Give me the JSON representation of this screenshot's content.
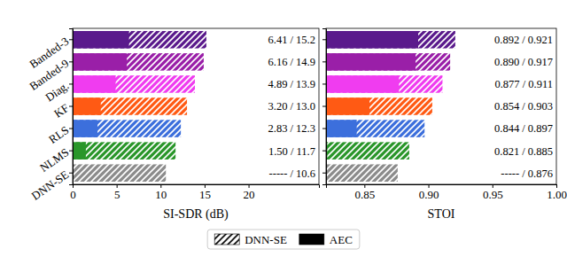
{
  "chart_data": [
    {
      "type": "bar",
      "orientation": "horizontal",
      "categories": [
        "Banded-3",
        "Banded-9",
        "Diag.",
        "KF",
        "RLS",
        "NLMS",
        "DNN-SE"
      ],
      "colors": [
        "#5a1a8c",
        "#9a1fa8",
        "#f03cf0",
        "#ff5a14",
        "#3c6fdc",
        "#2a962a",
        "#8c8c8c"
      ],
      "xlabel": "SI-SDR (dB)",
      "xlim": [
        0,
        28
      ],
      "xticks": [
        0,
        5,
        10,
        15,
        20
      ],
      "series": [
        {
          "name": "DNN-SE",
          "marker": "hatch",
          "color": "#000000",
          "values": [
            15.2,
            14.9,
            13.9,
            13.0,
            12.3,
            11.7,
            10.6
          ],
          "value_labels": [
            "6.41 / 15.2",
            "6.16 / 14.9",
            "4.89 / 13.9",
            "3.20 / 13.0",
            "2.83 / 12.3",
            "1.50 / 11.7",
            "----- / 10.6"
          ]
        },
        {
          "name": "AEC",
          "marker": "solid",
          "color": "#000000",
          "values": [
            6.41,
            6.16,
            4.89,
            3.2,
            2.83,
            1.5,
            null
          ]
        }
      ],
      "data_labels": true,
      "legend": "lower center",
      "tick_labels": true
    },
    {
      "type": "bar",
      "orientation": "horizontal",
      "categories": [
        "Banded-3",
        "Banded-9",
        "Diag.",
        "KF",
        "RLS",
        "NLMS",
        "DNN-SE"
      ],
      "colors": [
        "#5a1a8c",
        "#9a1fa8",
        "#f03cf0",
        "#ff5a14",
        "#3c6fdc",
        "#2a962a",
        "#8c8c8c"
      ],
      "xlabel": "STOI",
      "xlim": [
        0.82,
        1.0
      ],
      "xticks": [
        0.85,
        {
          "value": 0.9,
          "label": "0.90"
        },
        0.95,
        {
          "value": 1.0,
          "label": "1.00"
        }
      ],
      "series": [
        {
          "name": "DNN-SE",
          "marker": "hatch",
          "color": "#000000",
          "values": [
            0.921,
            0.917,
            0.911,
            0.903,
            0.897,
            0.885,
            0.876
          ],
          "value_labels": [
            "0.892 / 0.921",
            "0.890 / 0.917",
            "0.877 / 0.911",
            "0.854 / 0.903",
            "0.844 / 0.897",
            "0.821 / 0.885",
            "----- / 0.876"
          ]
        },
        {
          "name": "AEC",
          "marker": "solid",
          "color": "#000000",
          "values": [
            0.892,
            0.89,
            0.877,
            0.854,
            0.844,
            0.821,
            null
          ]
        }
      ],
      "data_labels": true,
      "legend": "lower center",
      "tick_labels": "x"
    }
  ]
}
